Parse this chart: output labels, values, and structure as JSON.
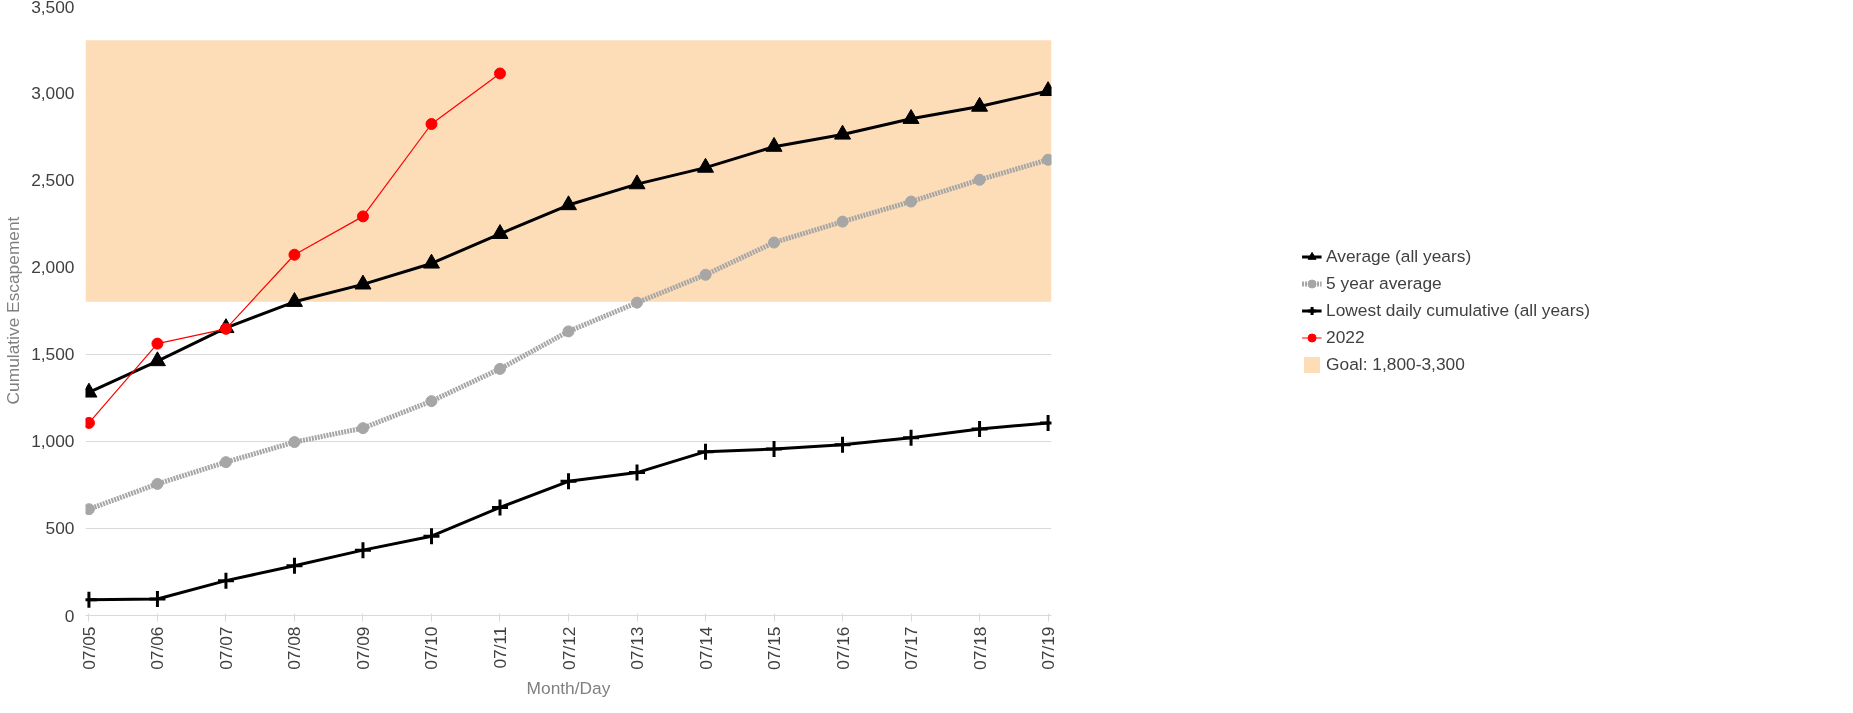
{
  "chart_data": {
    "type": "line",
    "xlabel": "Month/Day",
    "ylabel": "Cumulative Escapement",
    "categories": [
      "07/05",
      "07/06",
      "07/07",
      "07/08",
      "07/09",
      "07/10",
      "07/11",
      "07/12",
      "07/13",
      "07/14",
      "07/15",
      "07/16",
      "07/17",
      "07/18",
      "07/19"
    ],
    "ylim": [
      0,
      3500
    ],
    "yticks": [
      {
        "value": 0,
        "label": "0"
      },
      {
        "value": 500,
        "label": "500"
      },
      {
        "value": 1000,
        "label": "1,000"
      },
      {
        "value": 1500,
        "label": "1,500"
      },
      {
        "value": 2000,
        "label": "2,000"
      },
      {
        "value": 2500,
        "label": "2,500"
      },
      {
        "value": 3000,
        "label": "3,000"
      },
      {
        "value": 3500,
        "label": "3,500"
      }
    ],
    "grid": "y",
    "legend": "right",
    "series": [
      {
        "name": "Average (all years)",
        "color": "#000000",
        "marker": "triangle",
        "line_style": "solid",
        "values": [
          1280,
          1460,
          1650,
          1800,
          1900,
          2020,
          2190,
          2355,
          2475,
          2570,
          2690,
          2760,
          2850,
          2920,
          3010
        ]
      },
      {
        "name": "5 year average",
        "color": "#a6a6a6",
        "marker": "circle",
        "line_style": "dotted",
        "values": [
          610,
          755,
          880,
          995,
          1075,
          1230,
          1415,
          1630,
          1795,
          1955,
          2140,
          2260,
          2375,
          2500,
          2615
        ]
      },
      {
        "name": "Lowest daily cumulative (all years)",
        "color": "#000000",
        "marker": "cross",
        "line_style": "solid",
        "values": [
          90,
          95,
          200,
          285,
          375,
          455,
          620,
          770,
          820,
          940,
          955,
          980,
          1020,
          1070,
          1105
        ]
      },
      {
        "name": "2022",
        "color": "#ff0000",
        "marker": "circle",
        "line_style": "solid",
        "values": [
          1105,
          1560,
          1645,
          2070,
          2290,
          2820,
          3110,
          null,
          null,
          null,
          null,
          null,
          null,
          null,
          null
        ]
      }
    ],
    "bands": [
      {
        "axis": "y",
        "from": 1800,
        "to": 3300,
        "label": "Goal: 1,800-3,300",
        "color": "#fddcb8"
      }
    ]
  }
}
